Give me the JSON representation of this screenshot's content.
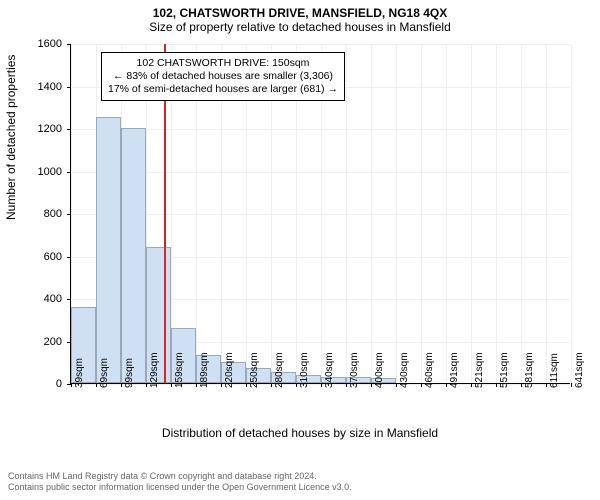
{
  "title": "102, CHATSWORTH DRIVE, MANSFIELD, NG18 4QX",
  "subtitle": "Size of property relative to detached houses in Mansfield",
  "ylabel": "Number of detached properties",
  "xlabel": "Distribution of detached houses by size in Mansfield",
  "footer_line1": "Contains HM Land Registry data © Crown copyright and database right 2024.",
  "footer_line2": "Contains public sector information licensed under the Open Government Licence v3.0.",
  "chart": {
    "type": "histogram",
    "ylim": [
      0,
      1600
    ],
    "yticks": [
      0,
      200,
      400,
      600,
      800,
      1000,
      1200,
      1400,
      1600
    ],
    "xtick_labels": [
      "39sqm",
      "69sqm",
      "99sqm",
      "129sqm",
      "159sqm",
      "189sqm",
      "220sqm",
      "250sqm",
      "280sqm",
      "310sqm",
      "340sqm",
      "370sqm",
      "400sqm",
      "430sqm",
      "460sqm",
      "491sqm",
      "521sqm",
      "551sqm",
      "581sqm",
      "611sqm",
      "641sqm"
    ],
    "bars": [
      360,
      1250,
      1200,
      640,
      260,
      130,
      100,
      70,
      50,
      40,
      30,
      30,
      25,
      0,
      0,
      0,
      0,
      0,
      0,
      0
    ],
    "bar_fill": "#cfe0f4",
    "bar_border": "#9aa8ba",
    "background_color": "#ffffff",
    "grid_color": "#eeeeee",
    "axis_color": "#000000",
    "tick_fontsize": 10,
    "label_fontsize": 12,
    "reference_line": {
      "value_sqm": 150,
      "color": "#d62728",
      "width": 2
    },
    "annotation": {
      "line1": "102 CHATSWORTH DRIVE: 150sqm",
      "line2": "← 83% of detached houses are smaller (3,306)",
      "line3": "17% of semi-detached houses are larger (681) →",
      "border_color": "#000000",
      "bg_color": "#ffffff",
      "fontsize": 10.5
    }
  }
}
